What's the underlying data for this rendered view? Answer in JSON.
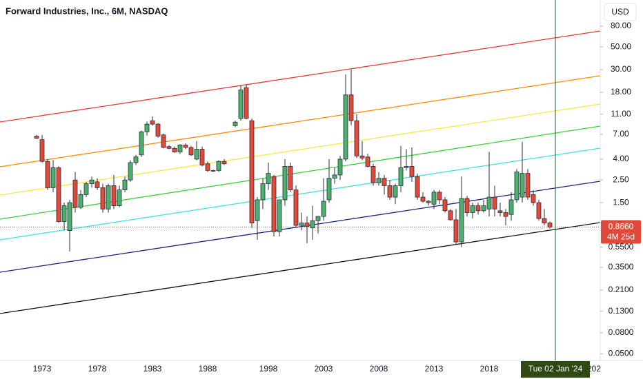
{
  "chart_data": {
    "type": "candlestick",
    "title": "Forward Industries, Inc., 6M, NASDAQ",
    "currency": "USD",
    "log_scale": true,
    "grid": false,
    "up_color": "#4caf6e",
    "down_color": "#e04a3a",
    "ylim": [
      0.043,
      144
    ],
    "yticks": [
      {
        "value": 80,
        "label": "80.00"
      },
      {
        "value": 50,
        "label": "50.00"
      },
      {
        "value": 30,
        "label": "30.00"
      },
      {
        "value": 18,
        "label": "18.00"
      },
      {
        "value": 11,
        "label": "11.00"
      },
      {
        "value": 7,
        "label": "7.00"
      },
      {
        "value": 4,
        "label": "4.00"
      },
      {
        "value": 2.5,
        "label": "2.50"
      },
      {
        "value": 1.5,
        "label": "1.50"
      },
      {
        "value": 0.55,
        "label": "0.5500"
      },
      {
        "value": 0.35,
        "label": "0.3500"
      },
      {
        "value": 0.21,
        "label": "0.2100"
      },
      {
        "value": 0.13,
        "label": "0.1300"
      },
      {
        "value": 0.08,
        "label": "0.0800"
      },
      {
        "value": 0.05,
        "label": "0.0500"
      }
    ],
    "last_price": {
      "value": 0.866,
      "label": "0.8660"
    },
    "countdown": "4M 25d",
    "crosshair_label": "Tue 02 Jan '24",
    "categories": [
      null,
      "1973",
      null,
      null,
      null,
      null,
      null,
      null,
      null,
      null,
      null,
      "1978",
      null,
      null,
      null,
      null,
      null,
      null,
      null,
      null,
      null,
      "1983",
      null,
      null,
      null,
      null,
      null,
      null,
      null,
      null,
      null,
      "1988",
      null,
      null,
      null,
      null,
      null,
      null,
      null,
      null,
      null,
      null,
      "1998",
      null,
      null,
      null,
      null,
      null,
      null,
      null,
      null,
      null,
      "2003",
      null,
      null,
      null,
      null,
      null,
      null,
      null,
      null,
      null,
      "2008",
      null,
      null,
      null,
      null,
      null,
      null,
      null,
      null,
      null,
      "2013",
      null,
      null,
      null,
      null,
      null,
      null,
      null,
      null,
      null,
      "2018",
      null,
      null,
      null,
      null,
      null,
      null,
      null,
      null,
      null,
      null,
      null,
      null,
      null,
      null,
      null,
      null,
      null,
      null,
      "202",
      null
    ],
    "open": [
      6.7,
      6.2,
      3.8,
      2.1,
      3.3,
      0.98,
      0.8,
      2.5,
      1.35,
      1.8,
      2.3,
      2.4,
      2.1,
      1.3,
      2.2,
      1.4,
      2.0,
      2.5,
      3.7,
      4.4,
      7.4,
      9.5,
      8.8,
      6.9,
      5.3,
      5.1,
      4.7,
      5.5,
      5.2,
      4.0,
      5.0,
      3.6,
      3.05,
      3.1,
      3.8,
      null,
      8.5,
      10,
      20,
      9.5,
      1.0,
      1.6,
      2.3,
      2.7,
      0.78,
      1.6,
      3.4,
      2.0,
      0.9,
      0.95,
      0.85,
      1.0,
      1.1,
      1.6,
      2.6,
      2.8,
      4.0,
      17,
      9.5,
      4.3,
      4.2,
      3.4,
      2.35,
      2.6,
      2.2,
      1.7,
      2.2,
      3.3,
      3.4,
      2.7,
      1.7,
      1.55,
      1.45,
      1.9,
      1.6,
      1.25,
      1.02,
      0.62,
      1.65,
      1.2,
      1.4,
      1.25,
      1.3,
      1.7,
      1.25,
      1.2,
      1.15,
      1.6,
      1.7,
      2.9,
      1.8,
      1.5,
      1.05,
      0.95,
      null,
      null,
      null,
      null,
      null,
      null,
      null,
      null,
      null
    ],
    "high": [
      6.9,
      6.9,
      4.0,
      3.9,
      3.4,
      1.5,
      1.6,
      3.0,
      2.0,
      2.4,
      2.7,
      2.6,
      2.3,
      2.3,
      2.8,
      2.2,
      2.7,
      3.9,
      4.4,
      7.6,
      9.3,
      10.5,
      9.0,
      7.1,
      5.5,
      5.3,
      5.6,
      5.7,
      5.4,
      6.0,
      5.3,
      3.8,
      3.15,
      3.9,
      4.0,
      null,
      9.5,
      21,
      21.5,
      10,
      1.7,
      2.6,
      3.7,
      2.8,
      1.6,
      4.0,
      3.7,
      2.2,
      1.2,
      1.1,
      1.4,
      1.1,
      2.6,
      4.0,
      3.3,
      4.3,
      27,
      30,
      11,
      6.0,
      4.5,
      3.6,
      3.0,
      2.8,
      2.5,
      2.3,
      5.4,
      5.0,
      5.2,
      2.9,
      1.9,
      1.6,
      2.0,
      2.0,
      1.7,
      1.3,
      1.3,
      2.7,
      1.75,
      1.5,
      1.5,
      1.6,
      4.7,
      2.2,
      1.5,
      1.3,
      1.9,
      3.2,
      5.9,
      3.2,
      2.0,
      1.6,
      1.3,
      0.98,
      null,
      null,
      null,
      null,
      null,
      null,
      null,
      null,
      null
    ],
    "low": [
      6.3,
      3.7,
      2.0,
      1.9,
      0.95,
      0.8,
      0.5,
      1.2,
      1.3,
      1.7,
      2.1,
      2.0,
      1.2,
      1.2,
      1.3,
      1.35,
      1.9,
      2.4,
      3.5,
      4.2,
      6.8,
      8.5,
      6.5,
      5.1,
      5.0,
      4.6,
      4.5,
      5.0,
      4.3,
      3.9,
      3.4,
      3.0,
      3.0,
      3.0,
      3.5,
      null,
      8.2,
      9.5,
      9.8,
      0.85,
      0.65,
      1.3,
      2.0,
      0.7,
      0.7,
      1.4,
      1.9,
      0.85,
      0.8,
      0.6,
      0.65,
      0.75,
      1.0,
      1.5,
      2.3,
      2.5,
      3.8,
      8.6,
      4.1,
      3.9,
      3.3,
      2.2,
      2.2,
      1.8,
      1.6,
      1.45,
      1.9,
      3.1,
      2.4,
      1.6,
      1.5,
      1.4,
      1.3,
      1.45,
      1.2,
      1.0,
      0.58,
      0.55,
      1.1,
      1.05,
      1.15,
      1.2,
      1.1,
      1.1,
      1.1,
      0.9,
      1.0,
      1.5,
      1.5,
      1.6,
      1.4,
      1.0,
      0.9,
      0.84,
      null,
      null,
      null,
      null,
      null,
      null,
      null,
      null,
      null
    ],
    "close": [
      6.4,
      3.8,
      2.1,
      3.3,
      0.98,
      1.4,
      1.5,
      1.35,
      1.8,
      2.3,
      2.5,
      2.1,
      1.3,
      2.2,
      1.4,
      2.0,
      2.5,
      3.7,
      4.2,
      7.4,
      8.8,
      8.8,
      6.7,
      5.2,
      5.1,
      4.7,
      5.5,
      5.2,
      4.4,
      5.0,
      3.5,
      3.1,
      3.1,
      3.8,
      3.6,
      null,
      9.2,
      19,
      10,
      0.95,
      1.6,
      2.3,
      2.9,
      0.78,
      1.6,
      3.4,
      2.0,
      0.9,
      0.95,
      0.88,
      1.0,
      1.1,
      1.55,
      2.6,
      2.8,
      4.0,
      17,
      9.5,
      4.3,
      4.1,
      3.4,
      2.35,
      2.6,
      2.2,
      1.7,
      2.2,
      3.3,
      3.4,
      2.7,
      1.7,
      1.55,
      1.5,
      1.9,
      1.6,
      1.25,
      1.02,
      0.62,
      1.65,
      1.2,
      1.4,
      1.25,
      1.4,
      1.7,
      1.3,
      1.2,
      1.1,
      1.6,
      3.0,
      2.9,
      1.7,
      1.5,
      1.05,
      0.95,
      0.866,
      null,
      null,
      null,
      null,
      null,
      null,
      null,
      null,
      null
    ]
  }
}
